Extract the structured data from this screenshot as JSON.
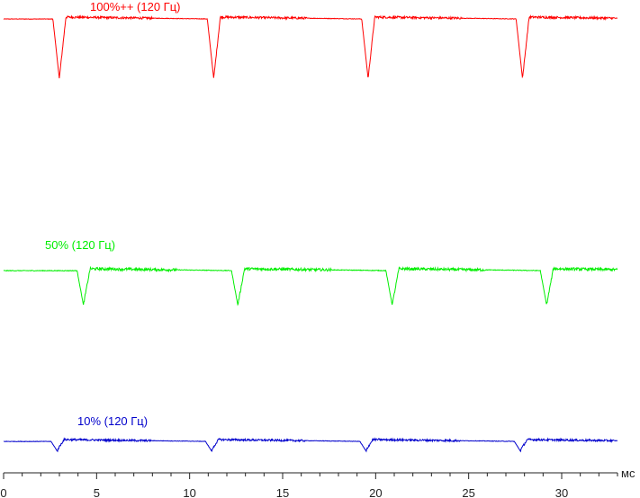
{
  "chart_data": {
    "type": "line",
    "title": "",
    "xlabel": "мс",
    "ylabel": "",
    "xlim": [
      0,
      33
    ],
    "x_ticks": [
      0,
      5,
      10,
      15,
      20,
      25,
      30
    ],
    "x_tick_labels": [
      "0",
      "5",
      "10",
      "15",
      "20",
      "25",
      "30"
    ],
    "grid": false,
    "legend": "none",
    "series": [
      {
        "name": "100%++ (120 Гц)",
        "color": "#ff0000",
        "period_ms": 8.28,
        "dip_times_ms": [
          3.0,
          11.3,
          19.6,
          27.9
        ],
        "dip_depth": 0.72,
        "noise_amplitude": 0.09
      },
      {
        "name": "50% (120 Гц)",
        "color": "#00ee00",
        "period_ms": 8.28,
        "dip_times_ms": [
          4.3,
          12.6,
          20.9,
          29.2
        ],
        "dip_depth": 0.42,
        "noise_amplitude": 0.11
      },
      {
        "name": "10% (120 Гц)",
        "color": "#0000cc",
        "period_ms": 8.28,
        "dip_times_ms": [
          2.9,
          11.2,
          19.5,
          27.8
        ],
        "dip_depth": 0.12,
        "noise_amplitude": 0.08
      }
    ]
  }
}
